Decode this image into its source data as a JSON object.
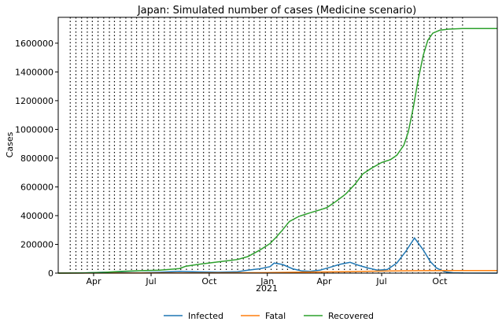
{
  "chart_data": {
    "type": "line",
    "title": "Japan: Simulated number of cases (Medicine scenario)",
    "xlabel": "2021",
    "ylabel": "Cases",
    "xlim": [
      "2020-02-05",
      "2021-12-31"
    ],
    "ylim": [
      0,
      1780000
    ],
    "yticks": [
      0,
      200000,
      400000,
      600000,
      800000,
      1000000,
      1200000,
      1400000,
      1600000
    ],
    "xticks": [
      {
        "date": "2020-04-01",
        "label": "Apr"
      },
      {
        "date": "2020-07-01",
        "label": "Jul"
      },
      {
        "date": "2020-10-01",
        "label": "Oct"
      },
      {
        "date": "2021-01-01",
        "label": "Jan"
      },
      {
        "date": "2021-04-01",
        "label": "Apr"
      },
      {
        "date": "2021-07-01",
        "label": "Jul"
      },
      {
        "date": "2021-10-01",
        "label": "Oct"
      }
    ],
    "grid": false,
    "legend_position": "bottom-center",
    "change_dates": [
      "2020-02-24",
      "2020-03-04",
      "2020-03-13",
      "2020-03-22",
      "2020-03-30",
      "2020-04-08",
      "2020-04-17",
      "2020-04-26",
      "2020-05-04",
      "2020-05-13",
      "2020-05-22",
      "2020-05-31",
      "2020-06-08",
      "2020-06-17",
      "2020-06-26",
      "2020-07-05",
      "2020-07-13",
      "2020-07-22",
      "2020-07-31",
      "2020-08-09",
      "2020-08-17",
      "2020-08-26",
      "2020-09-04",
      "2020-09-13",
      "2020-09-22",
      "2020-10-01",
      "2020-10-10",
      "2020-10-19",
      "2020-10-28",
      "2020-11-06",
      "2020-11-15",
      "2020-11-24",
      "2020-12-03",
      "2020-12-11",
      "2020-12-20",
      "2020-12-29",
      "2021-01-07",
      "2021-01-16",
      "2021-01-25",
      "2021-02-02",
      "2021-02-11",
      "2021-02-20",
      "2021-03-01",
      "2021-03-10",
      "2021-03-19",
      "2021-03-28",
      "2021-04-06",
      "2021-04-15",
      "2021-04-24",
      "2021-05-03",
      "2021-05-12",
      "2021-05-21",
      "2021-05-30",
      "2021-06-08",
      "2021-06-17",
      "2021-06-26",
      "2021-07-05",
      "2021-07-14",
      "2021-07-23",
      "2021-08-01",
      "2021-08-10",
      "2021-08-19",
      "2021-08-28",
      "2021-09-06",
      "2021-09-15",
      "2021-09-24",
      "2021-10-03",
      "2021-10-12",
      "2021-10-21",
      "2021-11-06"
    ],
    "series": [
      {
        "name": "Infected",
        "color": "#1f77b4",
        "points": [
          [
            "2020-02-05",
            0
          ],
          [
            "2020-03-15",
            800
          ],
          [
            "2020-04-15",
            6000
          ],
          [
            "2020-05-15",
            4000
          ],
          [
            "2020-06-15",
            2000
          ],
          [
            "2020-07-15",
            6000
          ],
          [
            "2020-08-15",
            12000
          ],
          [
            "2020-09-15",
            8000
          ],
          [
            "2020-10-15",
            6000
          ],
          [
            "2020-11-15",
            10000
          ],
          [
            "2020-12-01",
            20000
          ],
          [
            "2020-12-20",
            30000
          ],
          [
            "2021-01-05",
            45000
          ],
          [
            "2021-01-12",
            70000
          ],
          [
            "2021-01-25",
            60000
          ],
          [
            "2021-02-10",
            30000
          ],
          [
            "2021-02-25",
            15000
          ],
          [
            "2021-03-10",
            12000
          ],
          [
            "2021-03-25",
            20000
          ],
          [
            "2021-04-10",
            40000
          ],
          [
            "2021-04-25",
            60000
          ],
          [
            "2021-05-12",
            75000
          ],
          [
            "2021-05-25",
            55000
          ],
          [
            "2021-06-10",
            35000
          ],
          [
            "2021-06-25",
            20000
          ],
          [
            "2021-07-10",
            25000
          ],
          [
            "2021-07-25",
            70000
          ],
          [
            "2021-08-08",
            150000
          ],
          [
            "2021-08-22",
            245000
          ],
          [
            "2021-09-05",
            160000
          ],
          [
            "2021-09-16",
            80000
          ],
          [
            "2021-09-26",
            35000
          ],
          [
            "2021-10-08",
            10000
          ],
          [
            "2021-10-22",
            2000
          ],
          [
            "2021-11-06",
            500
          ],
          [
            "2021-12-31",
            0
          ]
        ]
      },
      {
        "name": "Fatal",
        "color": "#ff7f0e",
        "points": [
          [
            "2020-02-05",
            0
          ],
          [
            "2020-05-01",
            500
          ],
          [
            "2020-08-01",
            1000
          ],
          [
            "2020-11-01",
            2000
          ],
          [
            "2021-01-01",
            3500
          ],
          [
            "2021-03-01",
            7000
          ],
          [
            "2021-05-01",
            10000
          ],
          [
            "2021-07-01",
            14000
          ],
          [
            "2021-09-01",
            17000
          ],
          [
            "2021-10-15",
            18000
          ],
          [
            "2021-12-31",
            18000
          ]
        ]
      },
      {
        "name": "Recovered",
        "color": "#2ca02c",
        "points": [
          [
            "2020-02-05",
            0
          ],
          [
            "2020-03-15",
            1000
          ],
          [
            "2020-04-15",
            5000
          ],
          [
            "2020-05-15",
            12000
          ],
          [
            "2020-06-15",
            17000
          ],
          [
            "2020-07-15",
            21000
          ],
          [
            "2020-08-15",
            32000
          ],
          [
            "2020-08-25",
            48000
          ],
          [
            "2020-09-15",
            62000
          ],
          [
            "2020-10-15",
            78000
          ],
          [
            "2020-11-15",
            95000
          ],
          [
            "2020-12-01",
            115000
          ],
          [
            "2020-12-20",
            160000
          ],
          [
            "2021-01-05",
            205000
          ],
          [
            "2021-01-15",
            250000
          ],
          [
            "2021-01-25",
            300000
          ],
          [
            "2021-02-05",
            360000
          ],
          [
            "2021-02-20",
            395000
          ],
          [
            "2021-03-10",
            420000
          ],
          [
            "2021-03-25",
            440000
          ],
          [
            "2021-04-05",
            455000
          ],
          [
            "2021-04-20",
            500000
          ],
          [
            "2021-05-05",
            550000
          ],
          [
            "2021-05-20",
            620000
          ],
          [
            "2021-06-01",
            690000
          ],
          [
            "2021-06-15",
            730000
          ],
          [
            "2021-07-01",
            770000
          ],
          [
            "2021-07-15",
            790000
          ],
          [
            "2021-07-25",
            820000
          ],
          [
            "2021-08-05",
            890000
          ],
          [
            "2021-08-12",
            980000
          ],
          [
            "2021-08-20",
            1150000
          ],
          [
            "2021-08-28",
            1350000
          ],
          [
            "2021-09-05",
            1520000
          ],
          [
            "2021-09-12",
            1620000
          ],
          [
            "2021-09-20",
            1670000
          ],
          [
            "2021-10-01",
            1690000
          ],
          [
            "2021-10-15",
            1698000
          ],
          [
            "2021-11-06",
            1702000
          ],
          [
            "2021-12-31",
            1702000
          ]
        ]
      }
    ]
  }
}
